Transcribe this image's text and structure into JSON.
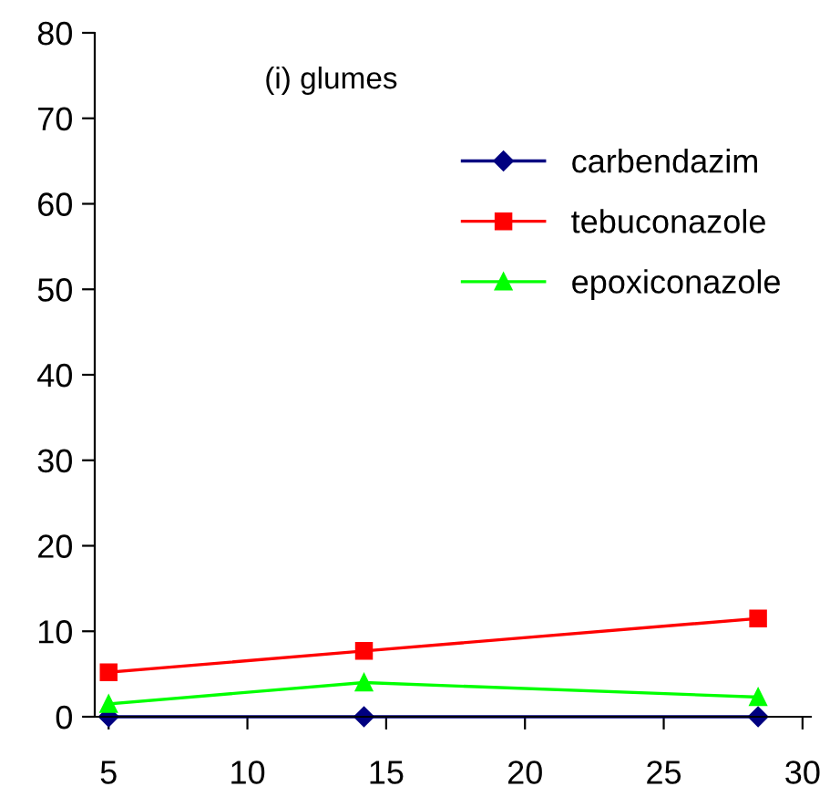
{
  "chart_data": {
    "type": "line",
    "annotations": [
      "(i) glumes"
    ],
    "x": [
      5,
      14.2,
      28.4
    ],
    "series": [
      {
        "name": "carbendazim",
        "color": "#000080",
        "marker": "diamond",
        "values": [
          0,
          0,
          0
        ]
      },
      {
        "name": "tebuconazole",
        "color": "#ff0000",
        "marker": "square",
        "values": [
          5.2,
          7.7,
          11.5
        ]
      },
      {
        "name": "epoxiconazole",
        "color": "#00ff00",
        "marker": "triangle",
        "values": [
          1.5,
          4.0,
          2.3
        ]
      }
    ],
    "xlim": [
      4.5,
      30.3
    ],
    "xticks": [
      5,
      10,
      15,
      20,
      25,
      30
    ],
    "ylim": [
      0,
      80
    ],
    "yticks": [
      0,
      10,
      20,
      30,
      40,
      50,
      60,
      70,
      80
    ],
    "grid": false,
    "legend": "right",
    "line_style": "solid"
  }
}
